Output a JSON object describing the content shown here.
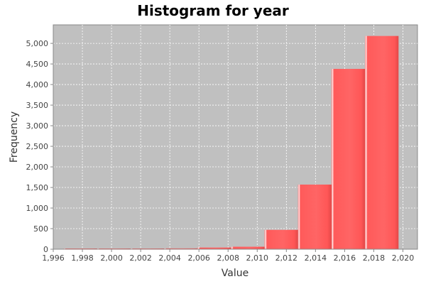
{
  "chart_data": {
    "type": "bar",
    "title": "Histogram for year",
    "xlabel": "Value",
    "ylabel": "Frequency",
    "xlim": [
      1996,
      2021
    ],
    "ylim": [
      0,
      5450
    ],
    "x_ticks": [
      1996,
      1998,
      2000,
      2002,
      2004,
      2006,
      2008,
      2010,
      2012,
      2014,
      2016,
      2018,
      2020
    ],
    "x_tick_labels": [
      "1,996",
      "1,998",
      "2,000",
      "2,002",
      "2,004",
      "2,006",
      "2,008",
      "2,010",
      "2,012",
      "2,014",
      "2,016",
      "2,018",
      "2,020"
    ],
    "y_ticks": [
      0,
      500,
      1000,
      1500,
      2000,
      2500,
      3000,
      3500,
      4000,
      4500,
      5000
    ],
    "y_tick_labels": [
      "0",
      "500",
      "1,000",
      "1,500",
      "2,000",
      "2,500",
      "3,000",
      "3,500",
      "4,000",
      "4,500",
      "5,000"
    ],
    "bins": [
      {
        "start": 1996.7,
        "end": 1999.0,
        "value": 3
      },
      {
        "start": 1999.0,
        "end": 2001.3,
        "value": 2
      },
      {
        "start": 2001.3,
        "end": 2003.6,
        "value": 10
      },
      {
        "start": 2003.6,
        "end": 2005.9,
        "value": 20
      },
      {
        "start": 2005.9,
        "end": 2008.2,
        "value": 40
      },
      {
        "start": 2008.2,
        "end": 2010.5,
        "value": 60
      },
      {
        "start": 2010.5,
        "end": 2012.8,
        "value": 470
      },
      {
        "start": 2012.8,
        "end": 2015.1,
        "value": 1570
      },
      {
        "start": 2015.1,
        "end": 2017.4,
        "value": 4380
      },
      {
        "start": 2017.4,
        "end": 2019.7,
        "value": 5180
      }
    ],
    "grid": true,
    "legend": "none",
    "colors": {
      "bar": "#ff5a5a",
      "bar_highlight": "#ffe8e8",
      "bar_shadow": "#d83c3c",
      "plot_background": "#c0c0c0",
      "gridline": "#ffffff"
    }
  }
}
